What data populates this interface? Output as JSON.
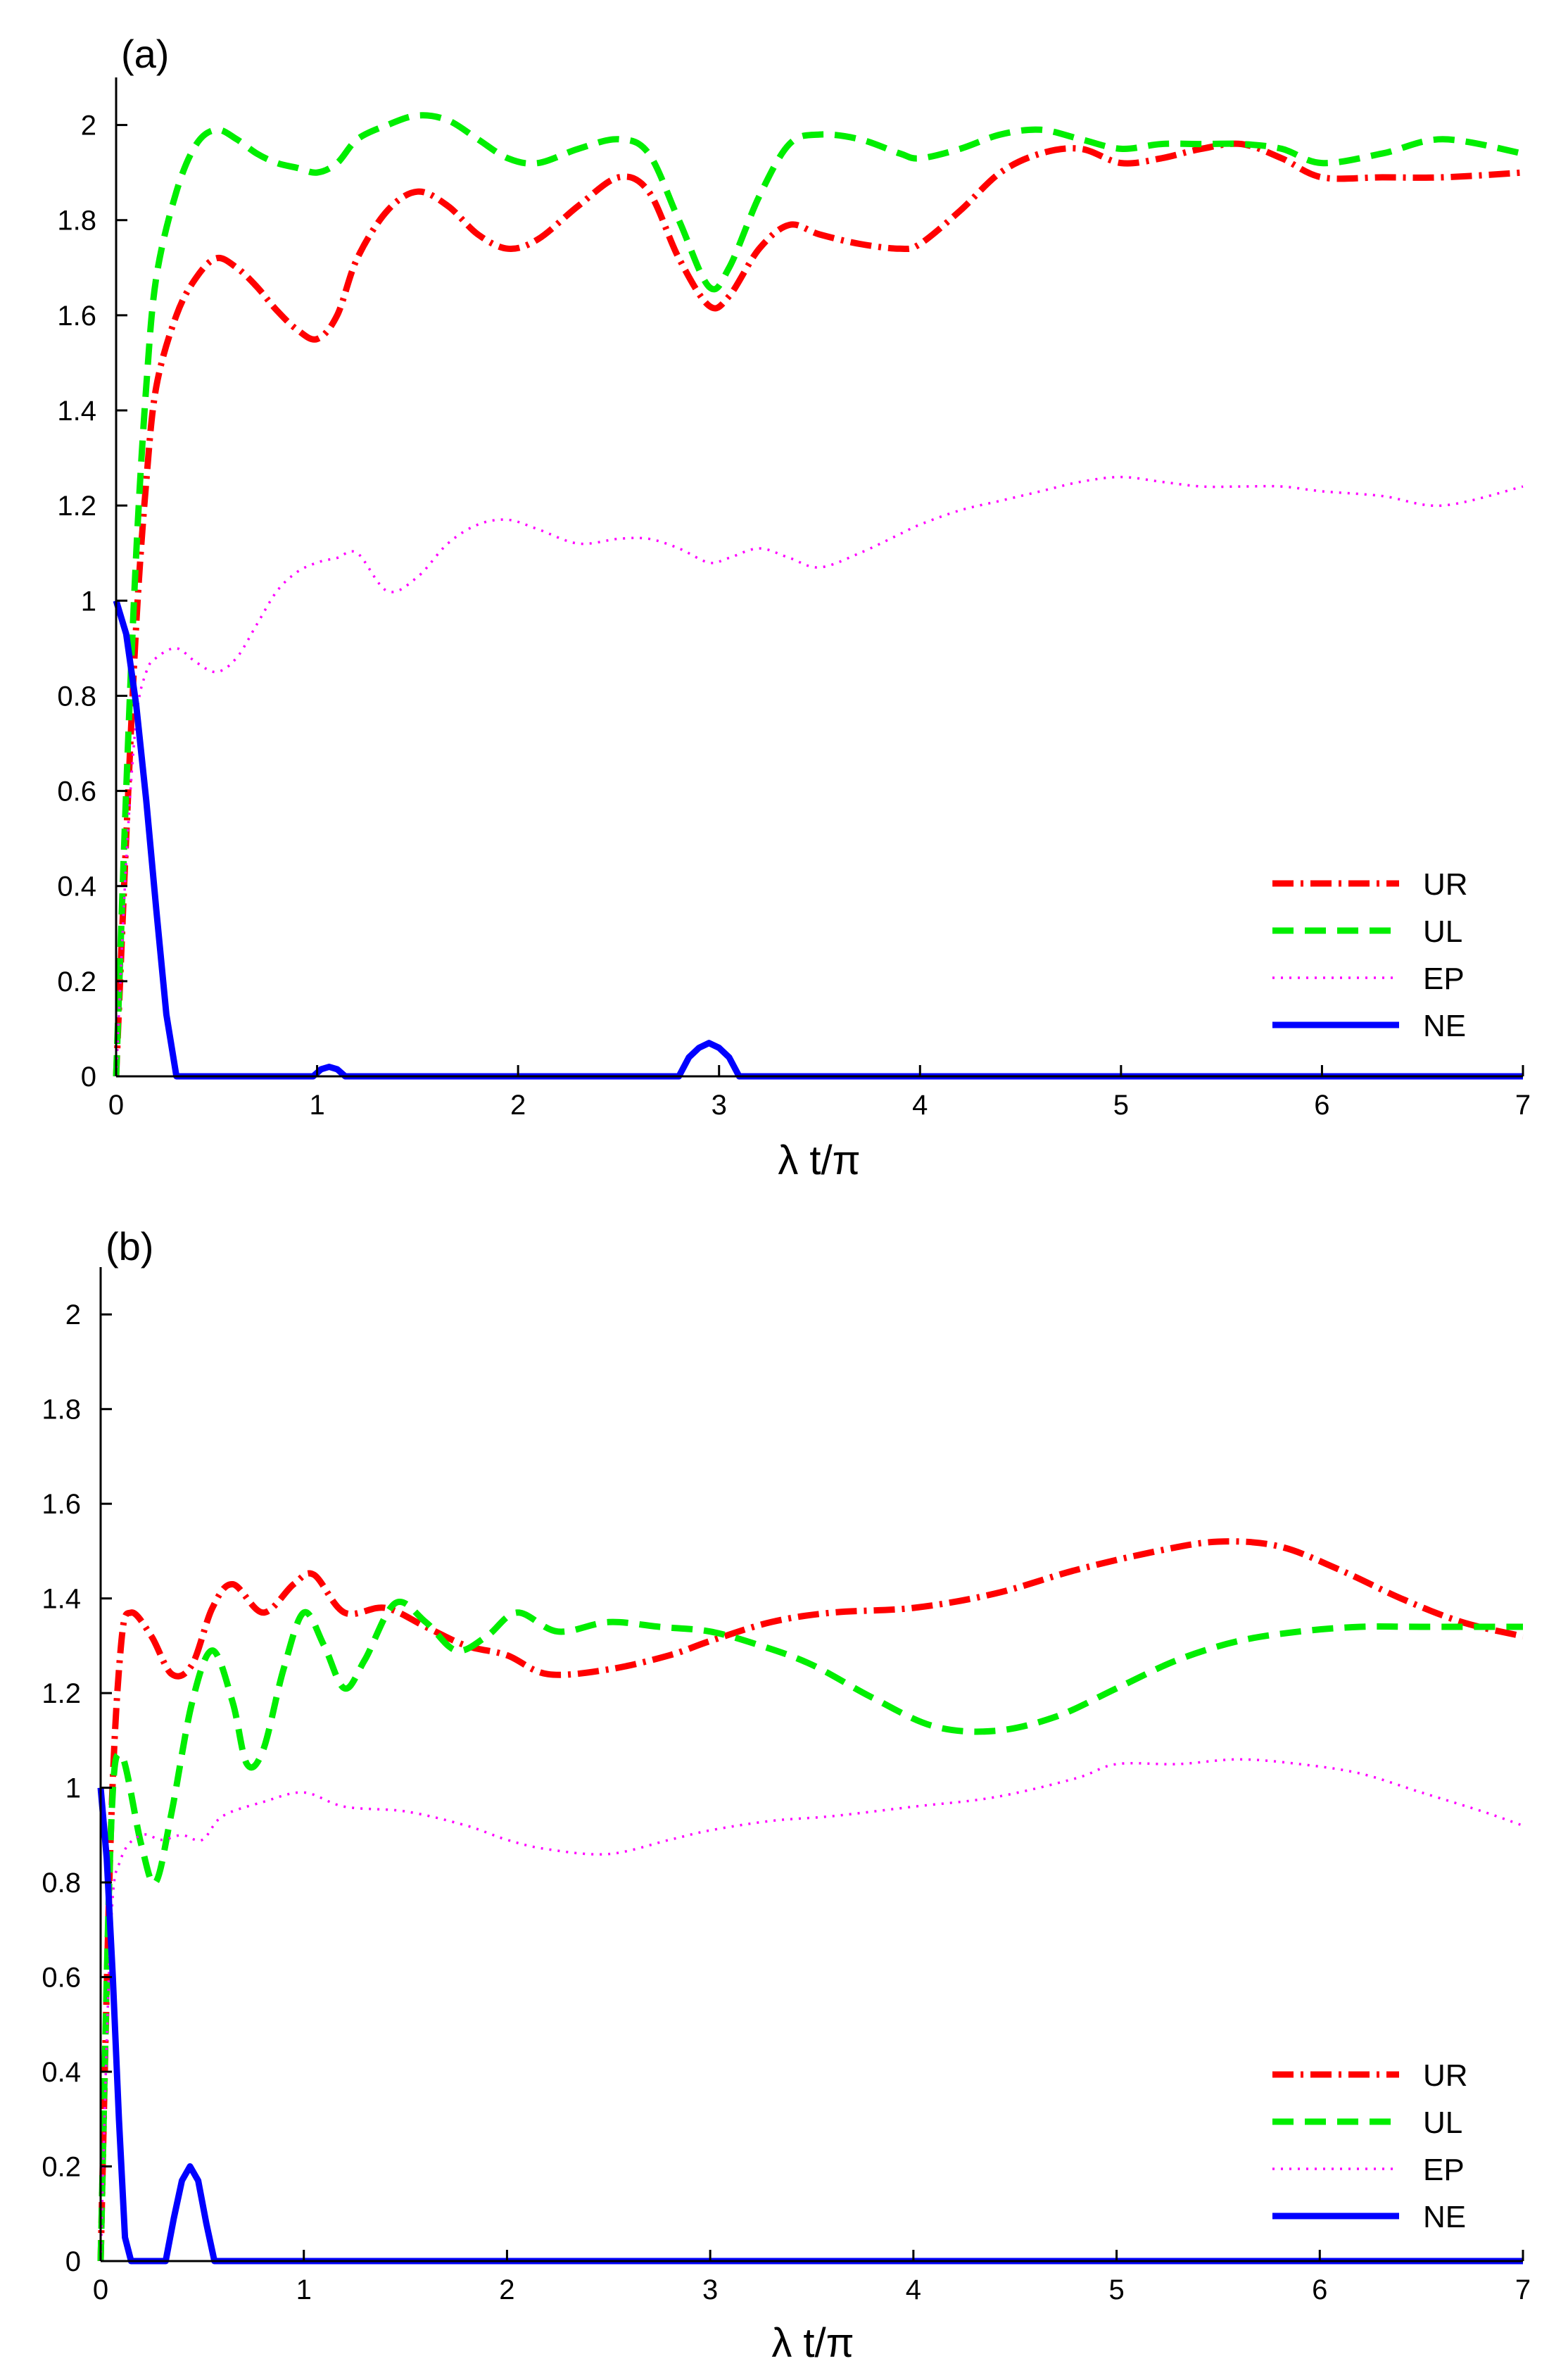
{
  "chart_data": [
    {
      "type": "line",
      "panel_label": "(a)",
      "xlabel": "λ t/π",
      "ylabel": "",
      "xlim": [
        0,
        7
      ],
      "ylim": [
        0,
        2.1
      ],
      "xticks": [
        0,
        1,
        2,
        3,
        4,
        5,
        6,
        7
      ],
      "yticks": [
        0,
        0.2,
        0.4,
        0.6,
        0.8,
        1,
        1.2,
        1.4,
        1.6,
        1.8,
        2
      ],
      "xtick_labels": [
        "0",
        "1",
        "2",
        "3",
        "4",
        "5",
        "6",
        "7"
      ],
      "ytick_labels": [
        "0",
        "0.2",
        "0.4",
        "0.6",
        "0.8",
        "1",
        "1.2",
        "1.4",
        "1.6",
        "1.8",
        "2"
      ],
      "legend_position": "lower-right",
      "series": [
        {
          "name": "UR",
          "color": "#ff0000",
          "style": "dashdot",
          "x": [
            0,
            0.05,
            0.1,
            0.15,
            0.2,
            0.3,
            0.4,
            0.5,
            0.6,
            0.7,
            0.8,
            0.9,
            1.0,
            1.1,
            1.2,
            1.35,
            1.5,
            1.65,
            1.8,
            1.95,
            2.1,
            2.3,
            2.5,
            2.65,
            2.8,
            2.95,
            3.05,
            3.2,
            3.35,
            3.5,
            3.7,
            3.9,
            4.0,
            4.2,
            4.4,
            4.6,
            4.8,
            5.0,
            5.2,
            5.4,
            5.6,
            5.8,
            6.0,
            6.3,
            6.6,
            7.0
          ],
          "y": [
            0,
            0.5,
            0.95,
            1.25,
            1.45,
            1.6,
            1.68,
            1.72,
            1.7,
            1.66,
            1.61,
            1.57,
            1.55,
            1.6,
            1.72,
            1.82,
            1.86,
            1.83,
            1.77,
            1.74,
            1.76,
            1.83,
            1.89,
            1.86,
            1.72,
            1.62,
            1.64,
            1.74,
            1.79,
            1.77,
            1.75,
            1.74,
            1.75,
            1.82,
            1.9,
            1.94,
            1.95,
            1.92,
            1.93,
            1.95,
            1.96,
            1.93,
            1.89,
            1.89,
            1.89,
            1.9
          ]
        },
        {
          "name": "UL",
          "color": "#00ee00",
          "style": "dashed",
          "x": [
            0,
            0.05,
            0.1,
            0.15,
            0.2,
            0.3,
            0.4,
            0.5,
            0.6,
            0.7,
            0.8,
            0.9,
            1.0,
            1.1,
            1.2,
            1.35,
            1.5,
            1.65,
            1.8,
            1.95,
            2.1,
            2.3,
            2.5,
            2.65,
            2.8,
            2.95,
            3.05,
            3.2,
            3.35,
            3.5,
            3.7,
            3.9,
            4.0,
            4.2,
            4.4,
            4.6,
            4.8,
            5.0,
            5.2,
            5.4,
            5.6,
            5.8,
            6.0,
            6.3,
            6.6,
            7.0
          ],
          "y": [
            0,
            0.6,
            1.1,
            1.45,
            1.68,
            1.86,
            1.96,
            1.99,
            1.97,
            1.94,
            1.92,
            1.91,
            1.9,
            1.92,
            1.97,
            2.0,
            2.02,
            2.01,
            1.97,
            1.93,
            1.92,
            1.95,
            1.97,
            1.94,
            1.8,
            1.66,
            1.7,
            1.85,
            1.96,
            1.98,
            1.97,
            1.94,
            1.93,
            1.95,
            1.98,
            1.99,
            1.97,
            1.95,
            1.96,
            1.96,
            1.96,
            1.95,
            1.92,
            1.94,
            1.97,
            1.94
          ]
        },
        {
          "name": "EP",
          "color": "#ff00ff",
          "style": "dotted",
          "x": [
            0,
            0.05,
            0.1,
            0.15,
            0.2,
            0.3,
            0.4,
            0.5,
            0.6,
            0.7,
            0.8,
            0.9,
            1.0,
            1.1,
            1.2,
            1.35,
            1.5,
            1.65,
            1.8,
            1.95,
            2.1,
            2.3,
            2.5,
            2.65,
            2.8,
            2.95,
            3.05,
            3.2,
            3.35,
            3.5,
            3.7,
            3.9,
            4.0,
            4.2,
            4.4,
            4.6,
            4.8,
            5.0,
            5.2,
            5.4,
            5.6,
            5.8,
            6.0,
            6.3,
            6.6,
            7.0
          ],
          "y": [
            0,
            0.45,
            0.75,
            0.85,
            0.88,
            0.9,
            0.87,
            0.85,
            0.88,
            0.95,
            1.02,
            1.06,
            1.08,
            1.09,
            1.1,
            1.02,
            1.05,
            1.12,
            1.16,
            1.17,
            1.15,
            1.12,
            1.13,
            1.13,
            1.11,
            1.08,
            1.09,
            1.11,
            1.09,
            1.07,
            1.1,
            1.14,
            1.16,
            1.19,
            1.21,
            1.23,
            1.25,
            1.26,
            1.25,
            1.24,
            1.24,
            1.24,
            1.23,
            1.22,
            1.2,
            1.24
          ]
        },
        {
          "name": "NE",
          "color": "#0000ff",
          "style": "solid",
          "x": [
            0,
            0.05,
            0.1,
            0.15,
            0.2,
            0.25,
            0.3,
            0.35,
            0.98,
            1.02,
            1.06,
            1.1,
            1.14,
            2.8,
            2.85,
            2.9,
            2.95,
            3.0,
            3.05,
            3.1,
            7.0
          ],
          "y": [
            1.0,
            0.93,
            0.78,
            0.58,
            0.35,
            0.13,
            0.0,
            0.0,
            0.0,
            0.015,
            0.02,
            0.015,
            0.0,
            0.0,
            0.04,
            0.06,
            0.07,
            0.06,
            0.04,
            0.0,
            0.0
          ]
        }
      ]
    },
    {
      "type": "line",
      "panel_label": "(b)",
      "xlabel": "λ t/π",
      "ylabel": "",
      "xlim": [
        0,
        7
      ],
      "ylim": [
        0,
        2.1
      ],
      "xticks": [
        0,
        1,
        2,
        3,
        4,
        5,
        6,
        7
      ],
      "yticks": [
        0,
        0.2,
        0.4,
        0.6,
        0.8,
        1,
        1.2,
        1.4,
        1.6,
        1.8,
        2
      ],
      "xtick_labels": [
        "0",
        "1",
        "2",
        "3",
        "4",
        "5",
        "6",
        "7"
      ],
      "ytick_labels": [
        "0",
        "0.2",
        "0.4",
        "0.6",
        "0.8",
        "1",
        "1.2",
        "1.4",
        "1.6",
        "1.8",
        "2"
      ],
      "legend_position": "lower-right",
      "series": [
        {
          "name": "UR",
          "color": "#ff0000",
          "style": "dashdot",
          "x": [
            0,
            0.05,
            0.1,
            0.15,
            0.25,
            0.35,
            0.45,
            0.55,
            0.65,
            0.8,
            0.95,
            1.05,
            1.2,
            1.4,
            1.6,
            1.8,
            2.0,
            2.2,
            2.5,
            2.8,
            3.0,
            3.3,
            3.6,
            4.0,
            4.4,
            4.8,
            5.2,
            5.5,
            5.8,
            6.1,
            6.4,
            6.7,
            7.0
          ],
          "y": [
            0,
            0.9,
            1.3,
            1.37,
            1.32,
            1.24,
            1.26,
            1.38,
            1.43,
            1.37,
            1.43,
            1.45,
            1.37,
            1.38,
            1.34,
            1.3,
            1.28,
            1.24,
            1.25,
            1.28,
            1.31,
            1.35,
            1.37,
            1.38,
            1.41,
            1.46,
            1.5,
            1.52,
            1.51,
            1.46,
            1.4,
            1.35,
            1.32
          ]
        },
        {
          "name": "UL",
          "color": "#00ee00",
          "style": "dashed",
          "x": [
            0,
            0.05,
            0.1,
            0.2,
            0.27,
            0.35,
            0.45,
            0.55,
            0.65,
            0.72,
            0.8,
            0.9,
            1.0,
            1.1,
            1.2,
            1.3,
            1.45,
            1.6,
            1.75,
            1.9,
            2.05,
            2.25,
            2.5,
            2.75,
            3.0,
            3.25,
            3.5,
            3.8,
            4.1,
            4.4,
            4.7,
            5.0,
            5.3,
            5.6,
            5.9,
            6.2,
            6.5,
            7.0
          ],
          "y": [
            0,
            0.9,
            1.07,
            0.88,
            0.8,
            0.95,
            1.18,
            1.29,
            1.18,
            1.05,
            1.08,
            1.25,
            1.37,
            1.3,
            1.21,
            1.27,
            1.39,
            1.35,
            1.29,
            1.32,
            1.37,
            1.33,
            1.35,
            1.34,
            1.33,
            1.3,
            1.26,
            1.19,
            1.13,
            1.12,
            1.15,
            1.21,
            1.27,
            1.31,
            1.33,
            1.34,
            1.34,
            1.34
          ]
        },
        {
          "name": "EP",
          "color": "#ff00ff",
          "style": "dotted",
          "x": [
            0,
            0.05,
            0.1,
            0.2,
            0.3,
            0.4,
            0.5,
            0.6,
            0.8,
            1.0,
            1.2,
            1.5,
            1.8,
            2.0,
            2.2,
            2.5,
            2.8,
            3.0,
            3.3,
            3.6,
            4.0,
            4.4,
            4.8,
            5.0,
            5.3,
            5.6,
            5.9,
            6.2,
            6.5,
            6.8,
            7.0
          ],
          "y": [
            0,
            0.7,
            0.85,
            0.9,
            0.89,
            0.9,
            0.89,
            0.94,
            0.97,
            0.99,
            0.96,
            0.95,
            0.92,
            0.89,
            0.87,
            0.86,
            0.89,
            0.91,
            0.93,
            0.94,
            0.96,
            0.98,
            1.02,
            1.05,
            1.05,
            1.06,
            1.05,
            1.03,
            0.99,
            0.95,
            0.92
          ]
        },
        {
          "name": "NE",
          "color": "#0000ff",
          "style": "solid",
          "x": [
            0,
            0.03,
            0.06,
            0.09,
            0.12,
            0.15,
            0.32,
            0.36,
            0.4,
            0.44,
            0.48,
            0.52,
            0.56,
            7.0
          ],
          "y": [
            1.0,
            0.85,
            0.6,
            0.3,
            0.05,
            0.0,
            0.0,
            0.09,
            0.17,
            0.2,
            0.17,
            0.08,
            0.0,
            0.0
          ]
        }
      ]
    }
  ]
}
